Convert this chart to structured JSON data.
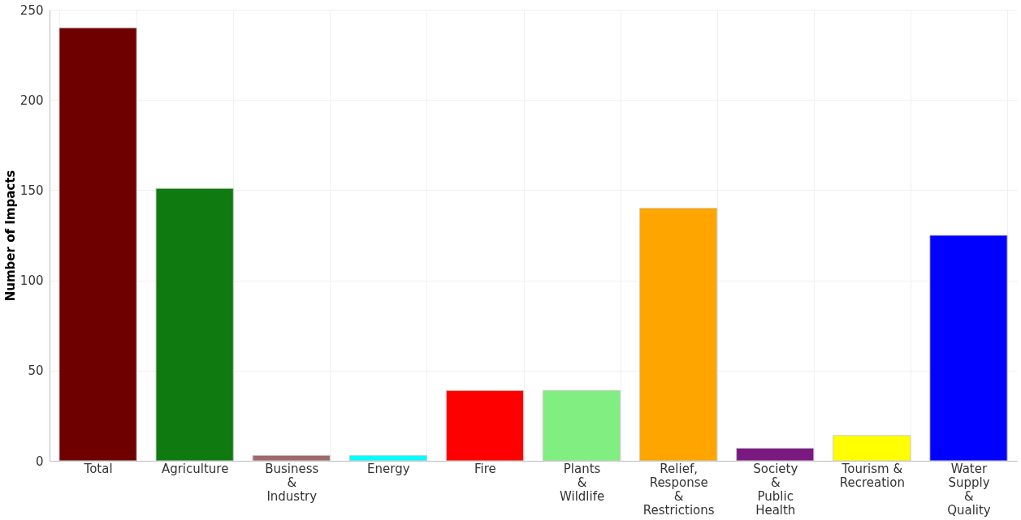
{
  "chart_data": {
    "type": "bar",
    "ylabel": "Number of Impacts",
    "categories": [
      "Total",
      "Agriculture",
      "Business\n&\nIndustry",
      "Energy",
      "Fire",
      "Plants\n&\nWildlife",
      "Relief,\nResponse\n&\nRestrictions",
      "Society\n&\nPublic\nHealth",
      "Tourism &\nRecreation",
      "Water\nSupply\n&\nQuality"
    ],
    "values": [
      240,
      151,
      3,
      3,
      39,
      39,
      140,
      7,
      14,
      125
    ],
    "colors": [
      "#6e0000",
      "#0f7a0f",
      "#9e6a6a",
      "#00ffff",
      "#ff0000",
      "#80ee80",
      "#ffa500",
      "#7a1a80",
      "#ffff00",
      "#0000ff"
    ],
    "ylim": [
      0,
      250
    ],
    "yticks": [
      0,
      50,
      100,
      150,
      200,
      250
    ],
    "grid": true
  }
}
